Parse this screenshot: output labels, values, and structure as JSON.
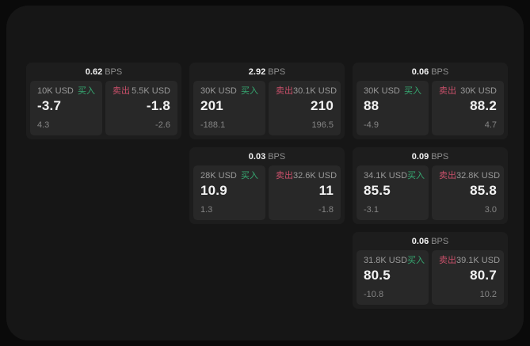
{
  "colors": {
    "page_bg": "#0a0a0a",
    "panel_bg": "#161616",
    "card_bg": "#1d1d1d",
    "cell_bg": "#282828",
    "text_primary": "#f2f2f2",
    "text_muted": "#8f8f8f",
    "buy_green": "#36a871",
    "sell_red": "#c9506a"
  },
  "labels": {
    "bps_unit": "BPS",
    "buy": "买入",
    "sell": "卖出"
  },
  "cards": [
    {
      "row": 1,
      "col": 1,
      "bps": "0.62",
      "buy": {
        "amount": "10K USD",
        "value": "-3.7",
        "delta": "4.3"
      },
      "sell": {
        "amount": "5.5K USD",
        "value": "-1.8",
        "delta": "-2.6"
      }
    },
    {
      "row": 1,
      "col": 2,
      "bps": "2.92",
      "buy": {
        "amount": "30K USD",
        "value": "201",
        "delta": "-188.1"
      },
      "sell": {
        "amount": "30.1K USD",
        "value": "210",
        "delta": "196.5"
      }
    },
    {
      "row": 1,
      "col": 3,
      "bps": "0.06",
      "buy": {
        "amount": "30K USD",
        "value": "88",
        "delta": "-4.9"
      },
      "sell": {
        "amount": "30K USD",
        "value": "88.2",
        "delta": "4.7"
      }
    },
    {
      "row": 2,
      "col": 2,
      "bps": "0.03",
      "buy": {
        "amount": "28K USD",
        "value": "10.9",
        "delta": "1.3"
      },
      "sell": {
        "amount": "32.6K USD",
        "value": "11",
        "delta": "-1.8"
      }
    },
    {
      "row": 2,
      "col": 3,
      "bps": "0.09",
      "buy": {
        "amount": "34.1K USD",
        "value": "85.5",
        "delta": "-3.1"
      },
      "sell": {
        "amount": "32.8K USD",
        "value": "85.8",
        "delta": "3.0"
      }
    },
    {
      "row": 3,
      "col": 3,
      "bps": "0.06",
      "buy": {
        "amount": "31.8K USD",
        "value": "80.5",
        "delta": "-10.8"
      },
      "sell": {
        "amount": "39.1K USD",
        "value": "80.7",
        "delta": "10.2"
      }
    }
  ]
}
